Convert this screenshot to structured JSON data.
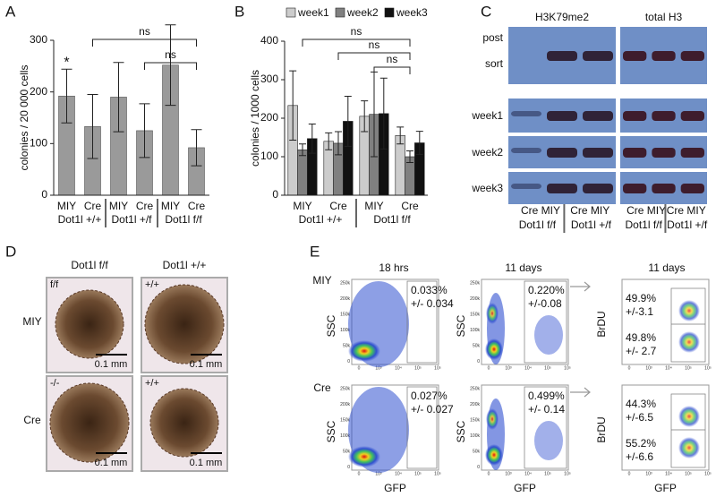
{
  "chart_data": [
    {
      "type": "bar",
      "panel": "A",
      "y_label": "colonies / 20 000 cells",
      "categories": [
        "MIY",
        "Cre",
        "MIY",
        "Cre",
        "MIY",
        "Cre"
      ],
      "groups": [
        "Dot1l +/+",
        "Dot1l +/f",
        "Dot1l f/f"
      ],
      "values": [
        192,
        133,
        190,
        125,
        252,
        92
      ],
      "errors": [
        52,
        62,
        67,
        52,
        78,
        35
      ],
      "color": "#9a9a9a",
      "ylim": [
        0,
        300
      ],
      "yticks": [
        0,
        100,
        200,
        300
      ],
      "annotations": [
        "*",
        "ns",
        "ns"
      ]
    },
    {
      "type": "bar",
      "panel": "B",
      "y_label": "colonies / 1000 cells",
      "categories": [
        "MIY",
        "Cre",
        "MIY",
        "Cre"
      ],
      "groups": [
        "Dot1l +/+",
        "Dot1l f/f"
      ],
      "series": [
        {
          "name": "week1",
          "color": "#cccccc",
          "values": [
            233,
            140,
            205,
            155
          ],
          "errors": [
            90,
            22,
            40,
            22
          ]
        },
        {
          "name": "week2",
          "color": "#808080",
          "values": [
            118,
            135,
            210,
            100
          ],
          "errors": [
            15,
            30,
            110,
            15
          ]
        },
        {
          "name": "week3",
          "color": "#111111",
          "values": [
            147,
            192,
            212,
            136
          ],
          "errors": [
            38,
            65,
            92,
            30
          ]
        }
      ],
      "ylim": [
        0,
        400
      ],
      "yticks": [
        0,
        100,
        200,
        300,
        400
      ],
      "annotations": [
        "ns",
        "ns",
        "ns"
      ]
    }
  ],
  "panel_c": {
    "label": "C",
    "blots": [
      "H3K79me2",
      "total H3"
    ],
    "rows": [
      "post",
      "sort",
      "week1",
      "week2",
      "week3"
    ],
    "lanes": "Cre MIY",
    "genotypes": [
      "Dot1l f/f",
      "Dot1l +/f"
    ]
  },
  "panel_d": {
    "label": "D",
    "columns": [
      "Dot1l f/f",
      "Dot1l +/+"
    ],
    "rows": [
      "MIY",
      "Cre"
    ],
    "genotypes": [
      "f/f",
      "+/+",
      "-/-",
      "+/+"
    ],
    "scale": "0.1 mm"
  },
  "panel_e": {
    "label": "E",
    "timepoints": [
      "18 hrs",
      "11 days",
      "11 days"
    ],
    "rows": [
      "MIY",
      "Cre"
    ],
    "gates": [
      [
        "0.033%",
        "+/- 0.034"
      ],
      [
        "0.220%",
        "+/-0.08"
      ],
      [
        "0.027%",
        "+/- 0.027"
      ],
      [
        "0.499%",
        "+/- 0.14"
      ]
    ],
    "brdu_gates": [
      [
        "49.9%",
        "+/-3.1"
      ],
      [
        "49.8%",
        "+/- 2.7"
      ],
      [
        "44.3%",
        "+/-6.5"
      ],
      [
        "55.2%",
        "+/-6.6"
      ]
    ],
    "axes": {
      "ssc": "SSC",
      "gfp": "GFP",
      "brdu": "BrDU"
    },
    "ssc_ticks": [
      "250k",
      "200k",
      "150k",
      "100k",
      "50k",
      "0"
    ],
    "gfp_ticks": [
      "0",
      "10³",
      "10⁴",
      "10⁵"
    ]
  }
}
